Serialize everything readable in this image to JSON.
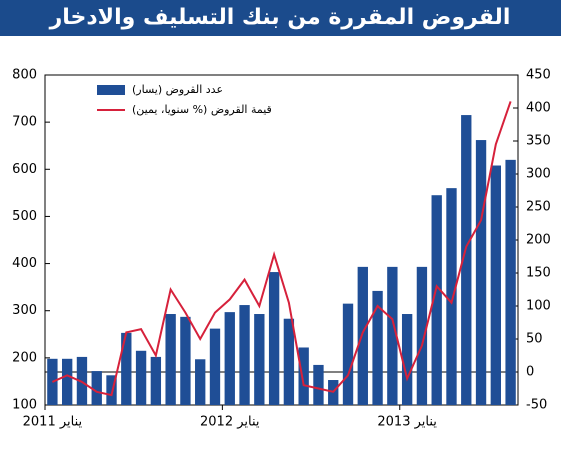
{
  "chart_data": {
    "type": "bar",
    "title": "القروض المقررة من بنك التسليف والادخار",
    "categories": [
      "يناير 2011",
      null,
      null,
      null,
      null,
      null,
      null,
      null,
      null,
      null,
      null,
      null,
      "يناير 2012",
      null,
      null,
      null,
      null,
      null,
      null,
      null,
      null,
      null,
      null,
      null,
      "يناير 2013",
      null,
      null,
      null,
      null,
      null,
      null,
      null
    ],
    "series": [
      {
        "name": "عدد القروض (يسار)",
        "type": "bar",
        "color": "#1f4e96",
        "values": [
          198,
          198,
          202,
          172,
          163,
          253,
          215,
          202,
          293,
          287,
          197,
          262,
          297,
          312,
          293,
          382,
          283,
          222,
          185,
          153,
          315,
          393,
          342,
          393,
          293,
          393,
          545,
          560,
          715,
          662,
          608,
          620
        ]
      },
      {
        "name": "قيمة القروض (% سنويا، يمين)",
        "type": "line",
        "axis": "y2",
        "color": "#d6213b",
        "values": [
          -15,
          -5,
          -15,
          -30,
          -35,
          60,
          65,
          25,
          125,
          90,
          50,
          90,
          110,
          140,
          100,
          178,
          105,
          -20,
          -25,
          -30,
          -5,
          60,
          100,
          80,
          -10,
          40,
          130,
          105,
          190,
          230,
          345,
          410
        ]
      }
    ],
    "ylim": [
      100,
      800
    ],
    "yticks": [
      100,
      200,
      300,
      400,
      500,
      600,
      700,
      800
    ],
    "y2lim": [
      -50,
      450
    ],
    "y2ticks": [
      -50,
      0,
      50,
      100,
      150,
      200,
      250,
      300,
      350,
      400,
      450
    ]
  }
}
